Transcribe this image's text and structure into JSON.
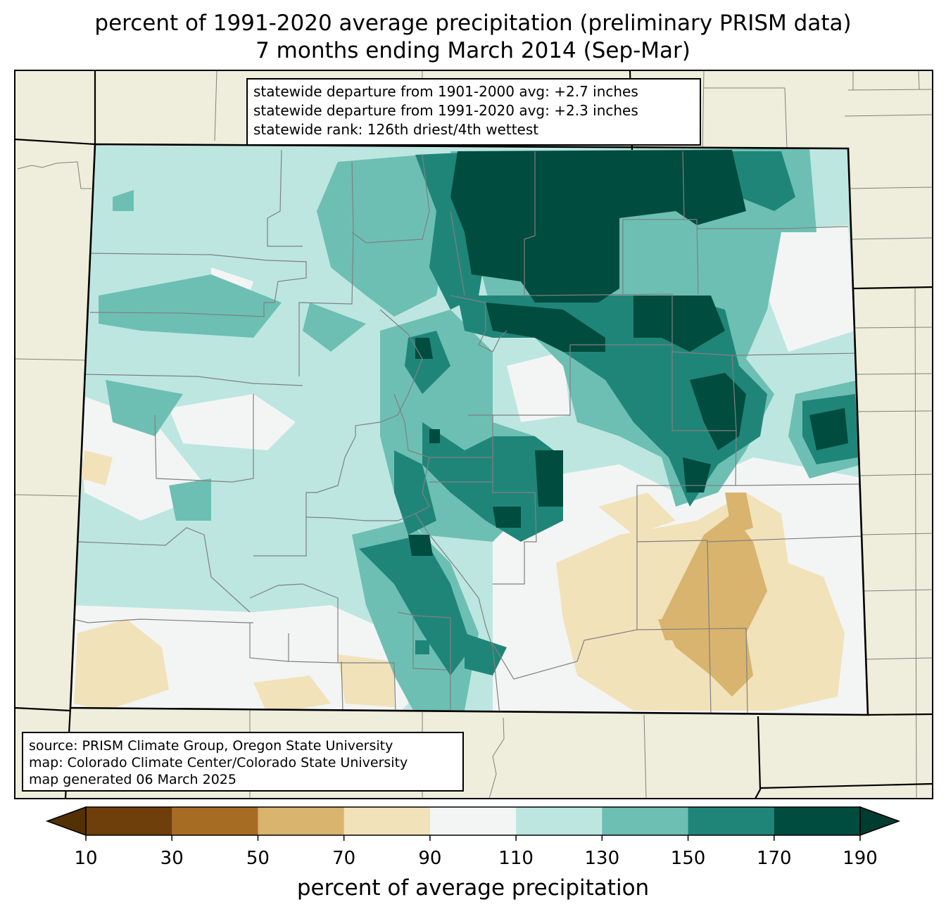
{
  "title": {
    "line1": "percent of 1991-2020 average precipitation (preliminary PRISM data)",
    "line2": "7 months ending March 2014 (Sep-Mar)"
  },
  "stats": {
    "line1": "statewide departure from 1901-2000 avg: +2.7 inches",
    "line2": "statewide departure from 1991-2020 avg: +2.3 inches",
    "line3": "statewide rank: 126th driest/4th wettest"
  },
  "source": {
    "line1": "source: PRISM Climate Group, Oregon State University",
    "line2": "map: Colorado Climate Center/Colorado State University",
    "line3": "map generated 06 March 2025"
  },
  "colorbar": {
    "label": "percent of average precipitation",
    "ticks": [
      "10",
      "30",
      "50",
      "70",
      "90",
      "110",
      "130",
      "150",
      "170",
      "190"
    ],
    "colors": [
      "#6e3f0b",
      "#a76c24",
      "#d8b46f",
      "#f2e2ba",
      "#f3f5f4",
      "#bde6e1",
      "#6dbfb3",
      "#208579",
      "#004c3f"
    ],
    "under_color": "#543005",
    "over_color": "#003c30"
  },
  "colors": {
    "land": "#efeedc",
    "state_line": "#000000",
    "county_line": "#808080"
  }
}
